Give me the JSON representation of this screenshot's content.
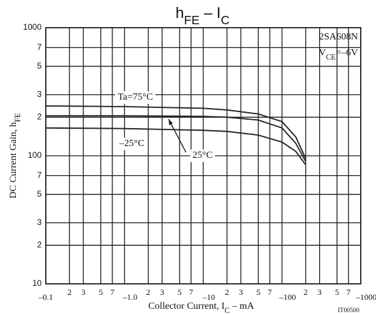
{
  "chart_data": {
    "type": "line",
    "title": [
      "h",
      "FE",
      " – I",
      "C"
    ],
    "y_label": [
      "DC Current Gain, h",
      "FE"
    ],
    "x_label": [
      "Collector Current, I",
      "C",
      " – mA"
    ],
    "device": "2SA608N",
    "condition": [
      "V",
      "CE",
      "=–6V"
    ],
    "code": "IT00500",
    "log_x": true,
    "log_y": true,
    "grid": true,
    "xlim": [
      -0.1,
      -1000
    ],
    "ylim": [
      10,
      1000
    ],
    "xticks": [
      {
        "value": -0.1,
        "label": "–0.1"
      },
      {
        "value": -0.2,
        "label": "2"
      },
      {
        "value": -0.3,
        "label": "3"
      },
      {
        "value": -0.5,
        "label": "5"
      },
      {
        "value": -0.7,
        "label": "7"
      },
      {
        "value": -1,
        "label": "–1.0"
      },
      {
        "value": -2,
        "label": "2"
      },
      {
        "value": -3,
        "label": "3"
      },
      {
        "value": -5,
        "label": "5"
      },
      {
        "value": -7,
        "label": "7"
      },
      {
        "value": -10,
        "label": "–10"
      },
      {
        "value": -20,
        "label": "2"
      },
      {
        "value": -30,
        "label": "3"
      },
      {
        "value": -50,
        "label": "5"
      },
      {
        "value": -70,
        "label": "7"
      },
      {
        "value": -100,
        "label": "–100"
      },
      {
        "value": -200,
        "label": "2"
      },
      {
        "value": -300,
        "label": "3"
      },
      {
        "value": -500,
        "label": "5"
      },
      {
        "value": -700,
        "label": "7"
      },
      {
        "value": -1000,
        "label": "–1000"
      }
    ],
    "yticks": [
      10,
      {
        "value": 20,
        "label": "2"
      },
      {
        "value": 30,
        "label": "3"
      },
      {
        "value": 50,
        "label": "5"
      },
      {
        "value": 70,
        "label": "7"
      },
      100,
      {
        "value": 200,
        "label": "2"
      },
      {
        "value": 300,
        "label": "3"
      },
      {
        "value": 500,
        "label": "5"
      },
      {
        "value": 700,
        "label": "7"
      },
      1000
    ],
    "x": [
      -0.1,
      -1,
      -10,
      -20,
      -50,
      -100,
      -150,
      -200
    ],
    "series": [
      {
        "name": "Ta=75°C",
        "color": "#222",
        "values": [
          245,
          242,
          235,
          228,
          212,
          185,
          140,
          95
        ]
      },
      {
        "name": "25°C",
        "color": "#222",
        "values": [
          205,
          205,
          203,
          200,
          190,
          165,
          125,
          90
        ]
      },
      {
        "name": "–25°C",
        "color": "#222",
        "values": [
          165,
          163,
          158,
          155,
          145,
          128,
          108,
          85
        ]
      }
    ]
  }
}
